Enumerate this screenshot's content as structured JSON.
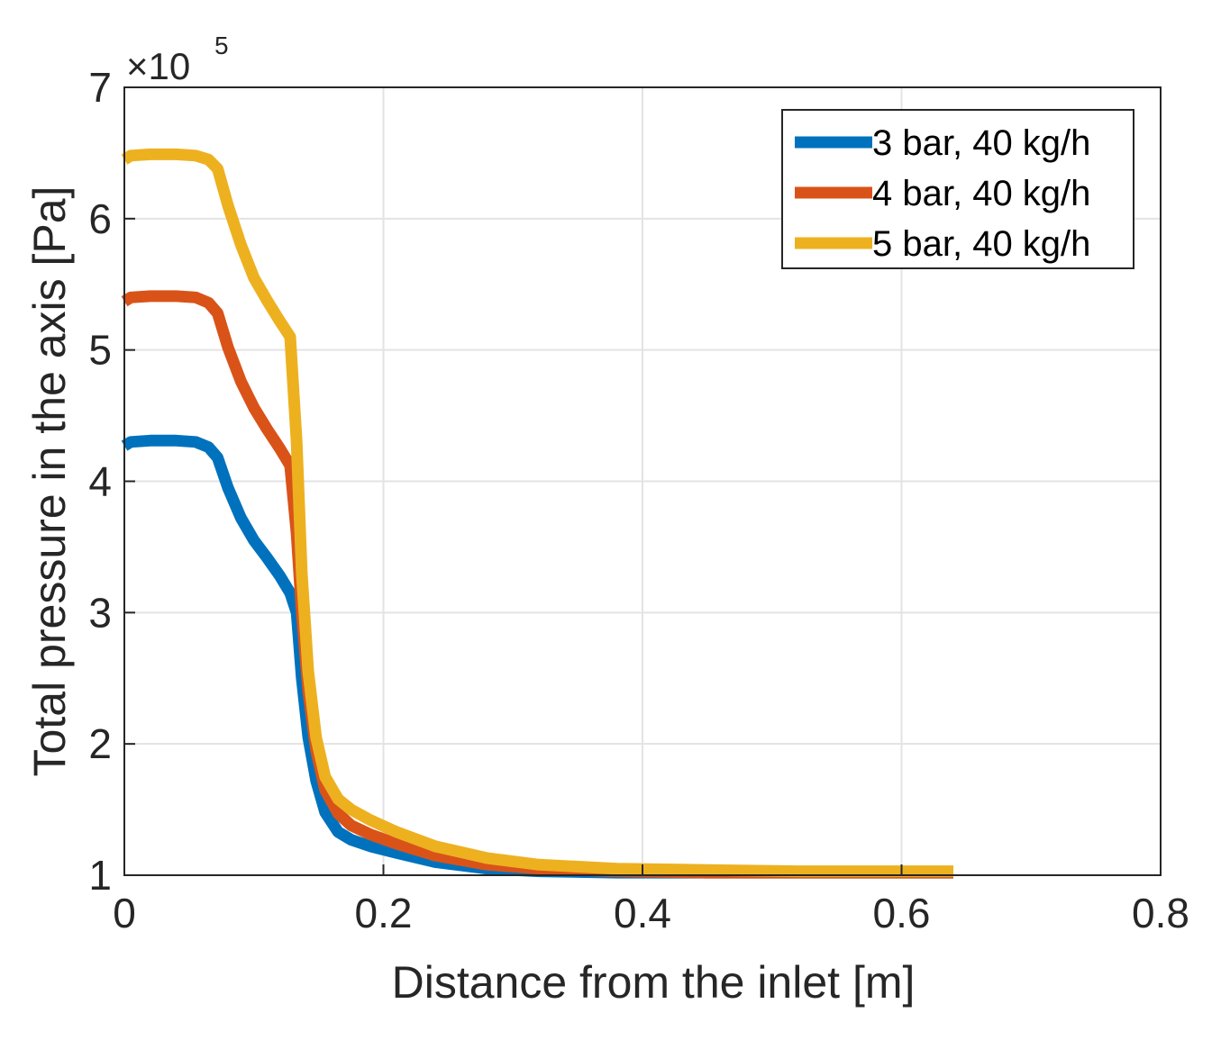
{
  "chart_data": {
    "type": "line",
    "title": "",
    "xlabel": "Distance from the inlet [m]",
    "ylabel": "Total pressure in the axis [Pa]",
    "xlim": [
      0,
      0.8
    ],
    "ylim": [
      1,
      7
    ],
    "y_exponent_base": "×10",
    "y_exponent_power": "5",
    "x_ticks": [
      0,
      0.2,
      0.4,
      0.6,
      0.8
    ],
    "x_tick_labels": [
      "0",
      "0.2",
      "0.4",
      "0.6",
      "0.8"
    ],
    "y_ticks": [
      1,
      2,
      3,
      4,
      5,
      6,
      7
    ],
    "y_tick_labels": [
      "1",
      "2",
      "3",
      "4",
      "5",
      "6",
      "7"
    ],
    "grid": true,
    "legend_position": "top-right",
    "series": [
      {
        "name": "3 bar, 40 kg/h",
        "color": "#0072BD",
        "x": [
          0,
          0.005,
          0.02,
          0.04,
          0.055,
          0.065,
          0.072,
          0.08,
          0.09,
          0.1,
          0.11,
          0.12,
          0.128,
          0.133,
          0.137,
          0.142,
          0.148,
          0.155,
          0.165,
          0.175,
          0.19,
          0.21,
          0.24,
          0.28,
          0.32,
          0.38,
          0.45,
          0.52,
          0.58,
          0.64
        ],
        "y": [
          4.27,
          4.3,
          4.31,
          4.31,
          4.3,
          4.26,
          4.18,
          3.95,
          3.72,
          3.55,
          3.42,
          3.28,
          3.15,
          3.0,
          2.5,
          2.05,
          1.72,
          1.48,
          1.33,
          1.27,
          1.22,
          1.17,
          1.1,
          1.05,
          1.03,
          1.02,
          1.02,
          1.02,
          1.02,
          1.02
        ]
      },
      {
        "name": "4 bar, 40 kg/h",
        "color": "#D95319",
        "x": [
          0,
          0.005,
          0.02,
          0.04,
          0.055,
          0.065,
          0.072,
          0.08,
          0.09,
          0.1,
          0.11,
          0.12,
          0.128,
          0.133,
          0.137,
          0.142,
          0.148,
          0.155,
          0.165,
          0.175,
          0.19,
          0.21,
          0.24,
          0.28,
          0.32,
          0.38,
          0.45,
          0.52,
          0.58,
          0.64
        ],
        "y": [
          5.37,
          5.4,
          5.41,
          5.41,
          5.4,
          5.36,
          5.28,
          5.02,
          4.76,
          4.56,
          4.4,
          4.25,
          4.12,
          3.6,
          3.0,
          2.4,
          1.95,
          1.65,
          1.47,
          1.38,
          1.31,
          1.24,
          1.15,
          1.08,
          1.05,
          1.03,
          1.02,
          1.02,
          1.02,
          1.02
        ]
      },
      {
        "name": "5 bar, 40 kg/h",
        "color": "#EDB120",
        "x": [
          0,
          0.005,
          0.02,
          0.04,
          0.055,
          0.065,
          0.072,
          0.08,
          0.09,
          0.1,
          0.11,
          0.12,
          0.128,
          0.133,
          0.137,
          0.142,
          0.148,
          0.155,
          0.165,
          0.175,
          0.19,
          0.21,
          0.24,
          0.28,
          0.32,
          0.38,
          0.45,
          0.52,
          0.58,
          0.64
        ],
        "y": [
          6.45,
          6.48,
          6.49,
          6.49,
          6.48,
          6.45,
          6.38,
          6.1,
          5.8,
          5.55,
          5.38,
          5.22,
          5.1,
          4.3,
          3.3,
          2.55,
          2.05,
          1.75,
          1.58,
          1.5,
          1.42,
          1.33,
          1.22,
          1.13,
          1.08,
          1.05,
          1.04,
          1.03,
          1.03,
          1.03
        ]
      }
    ]
  }
}
